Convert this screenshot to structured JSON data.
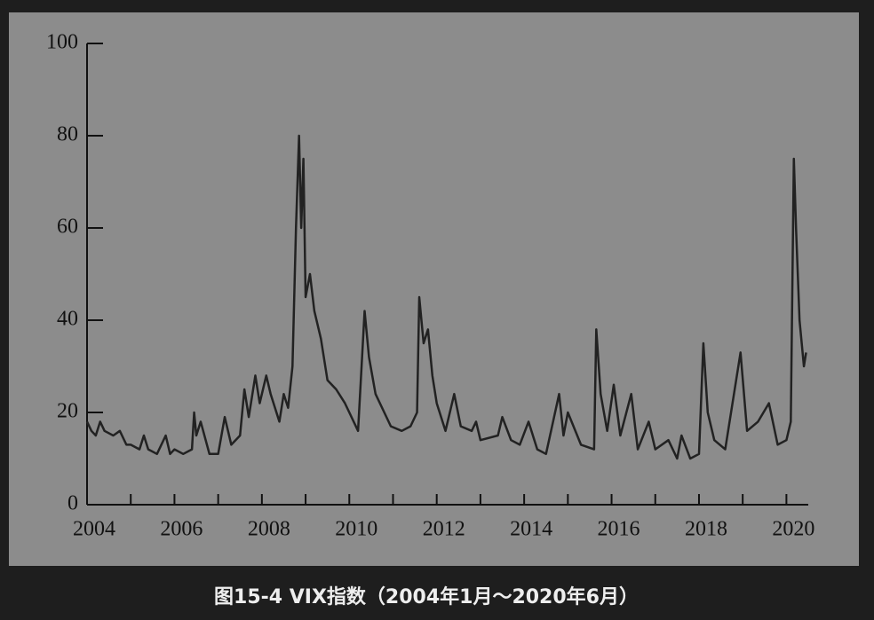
{
  "chart_data": {
    "type": "line",
    "title": "图15-4 VIX指数（2004年1月～2020年6月）",
    "xlim": [
      2004,
      2020.5
    ],
    "ylim": [
      0,
      100
    ],
    "xticks": [
      2004,
      2006,
      2008,
      2010,
      2012,
      2014,
      2016,
      2018,
      2020
    ],
    "xminor_ticks": [
      2005,
      2007,
      2009,
      2011,
      2013,
      2015,
      2017,
      2019
    ],
    "yticks": [
      0,
      20,
      40,
      60,
      80,
      100
    ],
    "x": [
      2004.0,
      2004.1,
      2004.2,
      2004.3,
      2004.4,
      2004.6,
      2004.75,
      2004.9,
      2005.0,
      2005.2,
      2005.3,
      2005.4,
      2005.6,
      2005.8,
      2005.9,
      2006.0,
      2006.2,
      2006.4,
      2006.45,
      2006.5,
      2006.6,
      2006.8,
      2007.0,
      2007.15,
      2007.3,
      2007.5,
      2007.6,
      2007.7,
      2007.85,
      2007.95,
      2008.1,
      2008.2,
      2008.4,
      2008.5,
      2008.6,
      2008.7,
      2008.78,
      2008.85,
      2008.9,
      2008.95,
      2009.0,
      2009.1,
      2009.2,
      2009.35,
      2009.5,
      2009.7,
      2009.9,
      2010.0,
      2010.2,
      2010.35,
      2010.45,
      2010.6,
      2010.8,
      2010.95,
      2011.2,
      2011.4,
      2011.55,
      2011.6,
      2011.7,
      2011.8,
      2011.9,
      2012.0,
      2012.2,
      2012.4,
      2012.55,
      2012.8,
      2012.9,
      2013.0,
      2013.4,
      2013.5,
      2013.7,
      2013.9,
      2014.1,
      2014.3,
      2014.5,
      2014.8,
      2014.9,
      2015.0,
      2015.3,
      2015.6,
      2015.65,
      2015.75,
      2015.9,
      2016.05,
      2016.2,
      2016.45,
      2016.6,
      2016.85,
      2017.0,
      2017.3,
      2017.5,
      2017.6,
      2017.8,
      2018.0,
      2018.1,
      2018.2,
      2018.35,
      2018.6,
      2018.8,
      2018.95,
      2019.1,
      2019.35,
      2019.6,
      2019.8,
      2020.0,
      2020.1,
      2020.17,
      2020.22,
      2020.3,
      2020.4,
      2020.45
    ],
    "series": [
      {
        "color": "#222222",
        "values": [
          18,
          16,
          15,
          18,
          16,
          15,
          16,
          13,
          13,
          12,
          15,
          12,
          11,
          15,
          11,
          12,
          11,
          12,
          20,
          15,
          18,
          11,
          11,
          19,
          13,
          15,
          25,
          19,
          28,
          22,
          28,
          24,
          18,
          24,
          21,
          30,
          60,
          80,
          60,
          75,
          45,
          50,
          42,
          36,
          27,
          25,
          22,
          20,
          16,
          42,
          32,
          24,
          20,
          17,
          16,
          17,
          20,
          45,
          35,
          38,
          28,
          22,
          16,
          24,
          17,
          16,
          18,
          14,
          15,
          19,
          14,
          13,
          18,
          12,
          11,
          24,
          15,
          20,
          13,
          12,
          38,
          24,
          16,
          26,
          15,
          24,
          12,
          18,
          12,
          14,
          10,
          15,
          10,
          11,
          35,
          20,
          14,
          12,
          24,
          33,
          16,
          18,
          22,
          13,
          14,
          18,
          75,
          60,
          40,
          30,
          33
        ]
      }
    ]
  }
}
